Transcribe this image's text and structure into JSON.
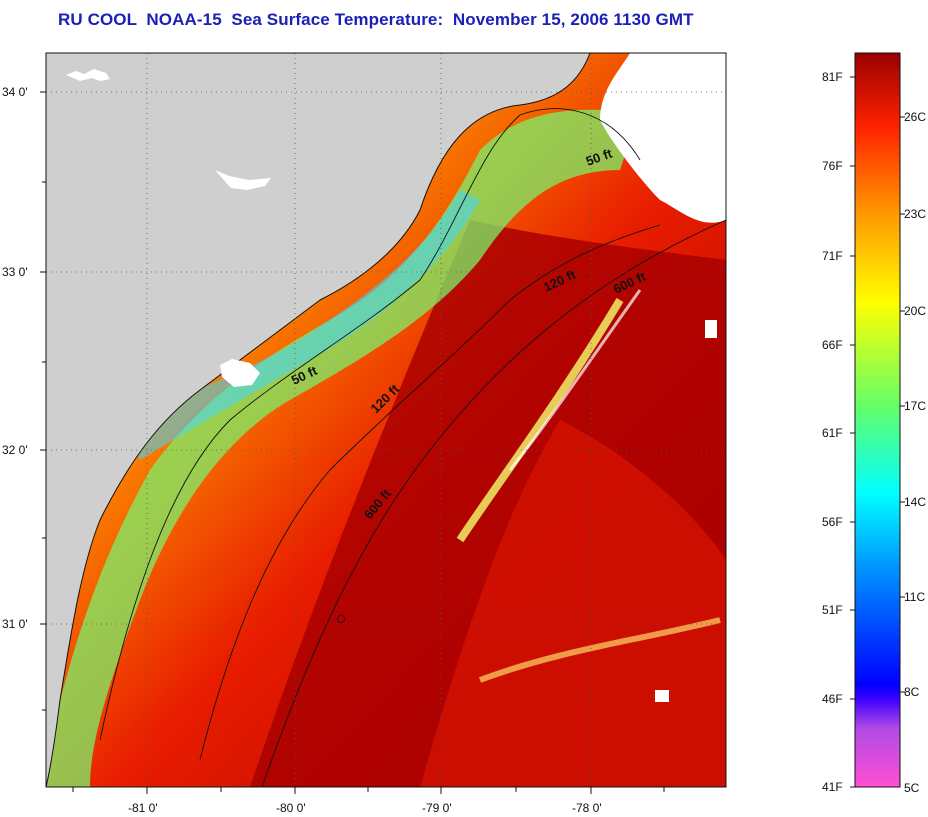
{
  "title": {
    "text": "RU COOL  NOAA-15  Sea Surface Temperature:  November 15, 2006 1130 GMT",
    "color": "#1b21b8"
  },
  "map": {
    "latitude_labels": [
      "34 0'",
      "33 0'",
      "32 0'",
      "31 0'"
    ],
    "longitude_labels": [
      "-81 0'",
      "-80 0'",
      "-79 0'",
      "-78 0'"
    ],
    "depth_contour_labels": [
      "50 ft",
      "120 ft",
      "600 ft",
      "50 ft",
      "120 ft",
      "600 ft"
    ],
    "land_color": "#cfcfcf",
    "ocean_colors": [
      "#ffd400",
      "#ff8a00",
      "#ee1f00",
      "#b80000",
      "#8f0000"
    ]
  },
  "colorbar": {
    "fahrenheit_labels": [
      "81F",
      "76F",
      "71F",
      "66F",
      "61F",
      "56F",
      "51F",
      "46F",
      "41F"
    ],
    "celsius_labels": [
      "26C",
      "23C",
      "20C",
      "17C",
      "14C",
      "11C",
      "8C",
      "5C"
    ],
    "colors": [
      "#ff4fd2",
      "#8a2be2",
      "#0000ff",
      "#00b7ff",
      "#00ffff",
      "#66ff66",
      "#ffff00",
      "#ff9900",
      "#ff2200",
      "#990000"
    ]
  }
}
